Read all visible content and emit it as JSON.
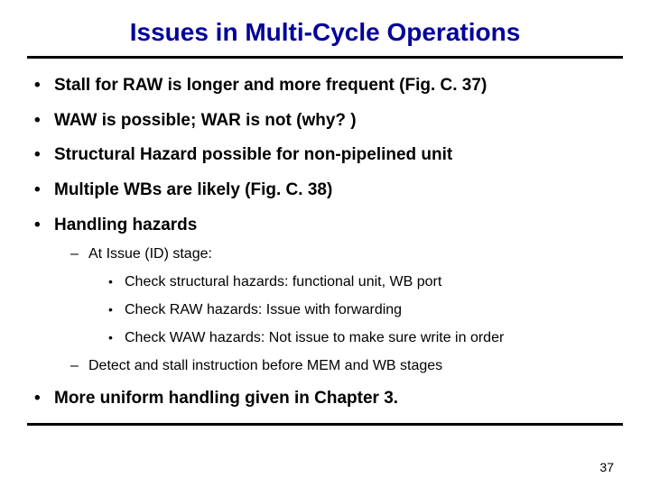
{
  "title": "Issues in Multi-Cycle Operations",
  "bullets": [
    {
      "text": "Stall for RAW is longer and more frequent  (Fig. C. 37)"
    },
    {
      "text": "WAW is possible;  WAR is not (why? )"
    },
    {
      "text": "Structural Hazard possible for non-pipelined unit"
    },
    {
      "text": "Multiple WBs are likely  (Fig. C. 38)"
    },
    {
      "text": "Handling hazards",
      "sub": [
        {
          "text": "At Issue (ID) stage:",
          "sub": [
            {
              "text": "Check structural hazards:  functional unit, WB port"
            },
            {
              "text": "Check RAW hazards:  Issue with forwarding"
            },
            {
              "text": "Check WAW hazards:  Not issue to make sure write in order"
            }
          ]
        },
        {
          "text": "Detect and stall instruction before MEM and WB stages"
        }
      ]
    },
    {
      "text": "More uniform handling given in Chapter 3."
    }
  ],
  "pageNumber": "37",
  "colors": {
    "title": "#000099",
    "rule": "#000000",
    "text": "#000000",
    "background": "#ffffff"
  }
}
